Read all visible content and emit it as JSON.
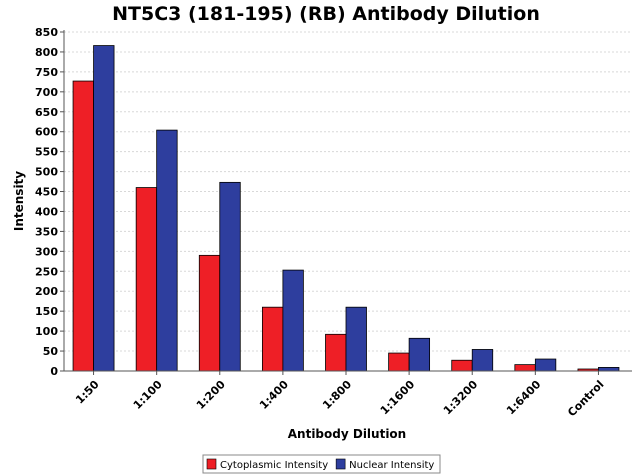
{
  "chart_data": {
    "type": "bar",
    "title": "NT5C3 (181-195) (RB) Antibody Dilution",
    "xlabel": "Antibody Dilution",
    "ylabel": "Intensity",
    "ylim": [
      0,
      850
    ],
    "yticks": [
      0,
      50,
      100,
      150,
      200,
      250,
      300,
      350,
      400,
      450,
      500,
      550,
      600,
      650,
      700,
      750,
      800,
      850
    ],
    "grid": true,
    "legend_position": "bottom",
    "categories": [
      "1:50",
      "1:100",
      "1:200",
      "1:400",
      "1:800",
      "1:1600",
      "1:3200",
      "1:6400",
      "Control"
    ],
    "series": [
      {
        "name": "Cytoplasmic Intensity",
        "color": "#ee1f26",
        "values": [
          727,
          460,
          290,
          160,
          92,
          45,
          27,
          16,
          5
        ]
      },
      {
        "name": "Nuclear Intensity",
        "color": "#2e3e9e",
        "values": [
          816,
          604,
          473,
          253,
          160,
          82,
          54,
          30,
          9
        ]
      }
    ]
  }
}
